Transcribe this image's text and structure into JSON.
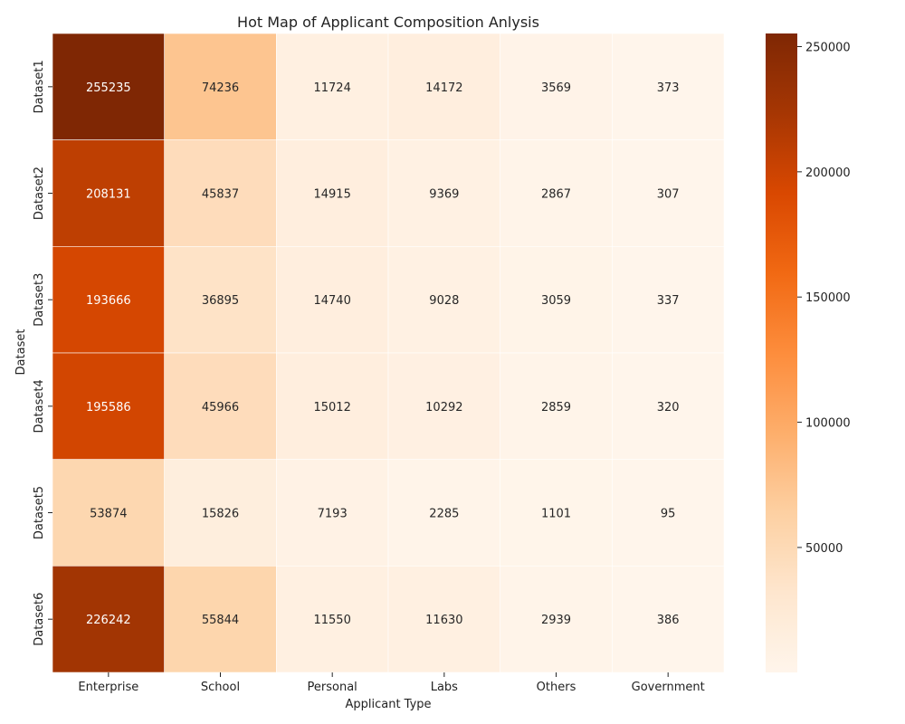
{
  "chart_data": {
    "type": "heatmap",
    "title": "Hot Map of Applicant Composition Anlysis",
    "xlabel": "Applicant Type",
    "ylabel": "Dataset",
    "x_categories": [
      "Enterprise",
      "School",
      "Personal",
      "Labs",
      "Others",
      "Government"
    ],
    "y_categories": [
      "Dataset1",
      "Dataset2",
      "Dataset3",
      "Dataset4",
      "Dataset5",
      "Dataset6"
    ],
    "values": [
      [
        255235,
        74236,
        11724,
        14172,
        3569,
        373
      ],
      [
        208131,
        45837,
        14915,
        9369,
        2867,
        307
      ],
      [
        193666,
        36895,
        14740,
        9028,
        3059,
        337
      ],
      [
        195586,
        45966,
        15012,
        10292,
        2859,
        320
      ],
      [
        53874,
        15826,
        7193,
        2285,
        1101,
        95
      ],
      [
        226242,
        55844,
        11550,
        11630,
        2939,
        386
      ]
    ],
    "colormap": "Oranges",
    "colorbar": {
      "range": [
        95,
        255235
      ],
      "ticks": [
        50000,
        100000,
        150000,
        200000,
        250000
      ]
    },
    "annotations": true
  }
}
